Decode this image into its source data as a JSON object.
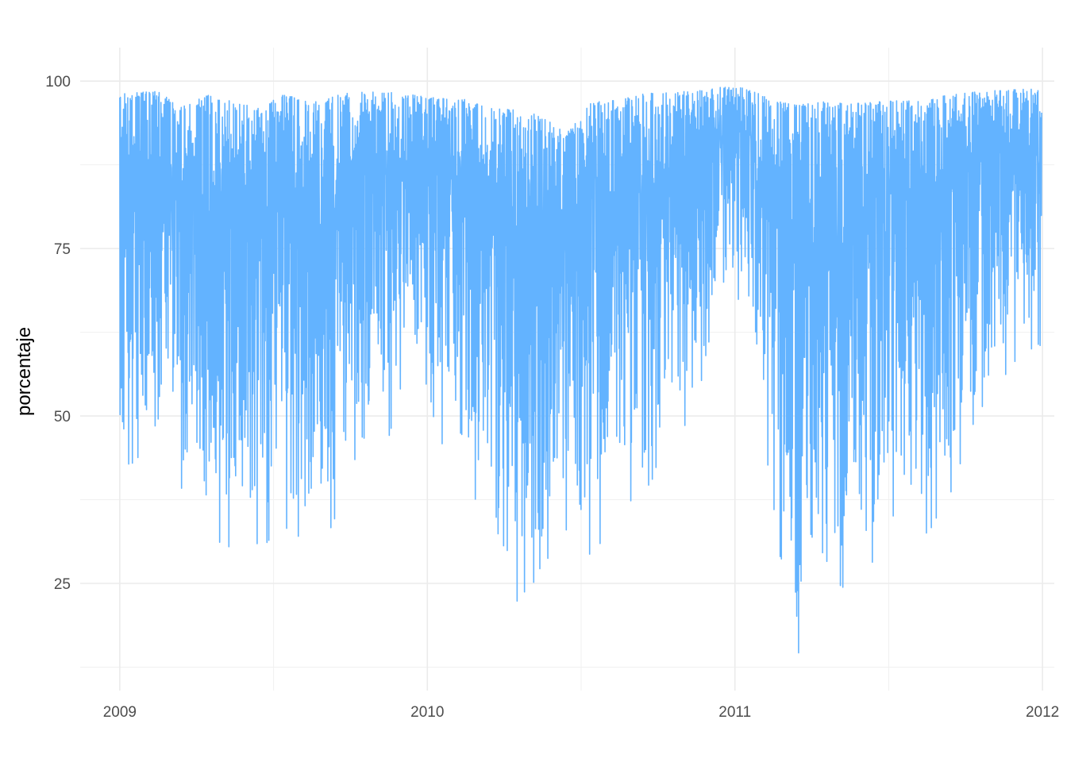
{
  "chart_data": {
    "type": "line",
    "title": "",
    "xlabel": "",
    "ylabel": "porcentaje",
    "x_range": [
      "2008-11-15",
      "2012-01-15"
    ],
    "ylim": [
      9,
      105
    ],
    "x_ticks": [
      "2009",
      "2010",
      "2011",
      "2012"
    ],
    "x_tick_dates": [
      "2009-01-01",
      "2010-01-01",
      "2011-01-01",
      "2012-01-01"
    ],
    "y_ticks": [
      25,
      50,
      75,
      100
    ],
    "grid": true,
    "line_color": "#63b3ff",
    "series": [
      {
        "sampling": "hourly",
        "start": "2009-01-01",
        "end": "2011-12-31",
        "monthly_envelope": [
          {
            "month": "2009-01",
            "min": 42,
            "max": 100
          },
          {
            "month": "2009-02",
            "min": 49,
            "max": 100
          },
          {
            "month": "2009-03",
            "min": 34,
            "max": 98
          },
          {
            "month": "2009-04",
            "min": 30,
            "max": 100
          },
          {
            "month": "2009-05",
            "min": 30,
            "max": 99
          },
          {
            "month": "2009-06",
            "min": 30,
            "max": 98
          },
          {
            "month": "2009-07",
            "min": 33,
            "max": 100
          },
          {
            "month": "2009-08",
            "min": 30,
            "max": 99
          },
          {
            "month": "2009-09",
            "min": 34,
            "max": 100
          },
          {
            "month": "2009-10",
            "min": 46,
            "max": 100
          },
          {
            "month": "2009-11",
            "min": 45,
            "max": 100
          },
          {
            "month": "2009-12",
            "min": 63,
            "max": 99
          },
          {
            "month": "2010-01",
            "min": 46,
            "max": 99
          },
          {
            "month": "2010-02",
            "min": 42,
            "max": 99
          },
          {
            "month": "2010-03",
            "min": 29,
            "max": 98
          },
          {
            "month": "2010-04",
            "min": 21,
            "max": 98
          },
          {
            "month": "2010-05",
            "min": 26,
            "max": 97
          },
          {
            "month": "2010-06",
            "min": 33,
            "max": 94
          },
          {
            "month": "2010-07",
            "min": 28,
            "max": 99
          },
          {
            "month": "2010-08",
            "min": 37,
            "max": 99
          },
          {
            "month": "2010-09",
            "min": 37,
            "max": 100
          },
          {
            "month": "2010-10",
            "min": 46,
            "max": 100
          },
          {
            "month": "2010-11",
            "min": 50,
            "max": 100
          },
          {
            "month": "2010-12",
            "min": 70,
            "max": 100
          },
          {
            "month": "2011-01",
            "min": 66,
            "max": 100
          },
          {
            "month": "2011-02",
            "min": 36,
            "max": 99
          },
          {
            "month": "2011-03",
            "min": 13,
            "max": 99
          },
          {
            "month": "2011-04",
            "min": 29,
            "max": 99
          },
          {
            "month": "2011-05",
            "min": 22,
            "max": 99
          },
          {
            "month": "2011-06",
            "min": 28,
            "max": 99
          },
          {
            "month": "2011-07",
            "min": 36,
            "max": 99
          },
          {
            "month": "2011-08",
            "min": 31,
            "max": 99
          },
          {
            "month": "2011-09",
            "min": 38,
            "max": 100
          },
          {
            "month": "2011-10",
            "min": 50,
            "max": 100
          },
          {
            "month": "2011-11",
            "min": 55,
            "max": 100
          },
          {
            "month": "2011-12",
            "min": 60,
            "max": 100
          }
        ]
      }
    ]
  }
}
